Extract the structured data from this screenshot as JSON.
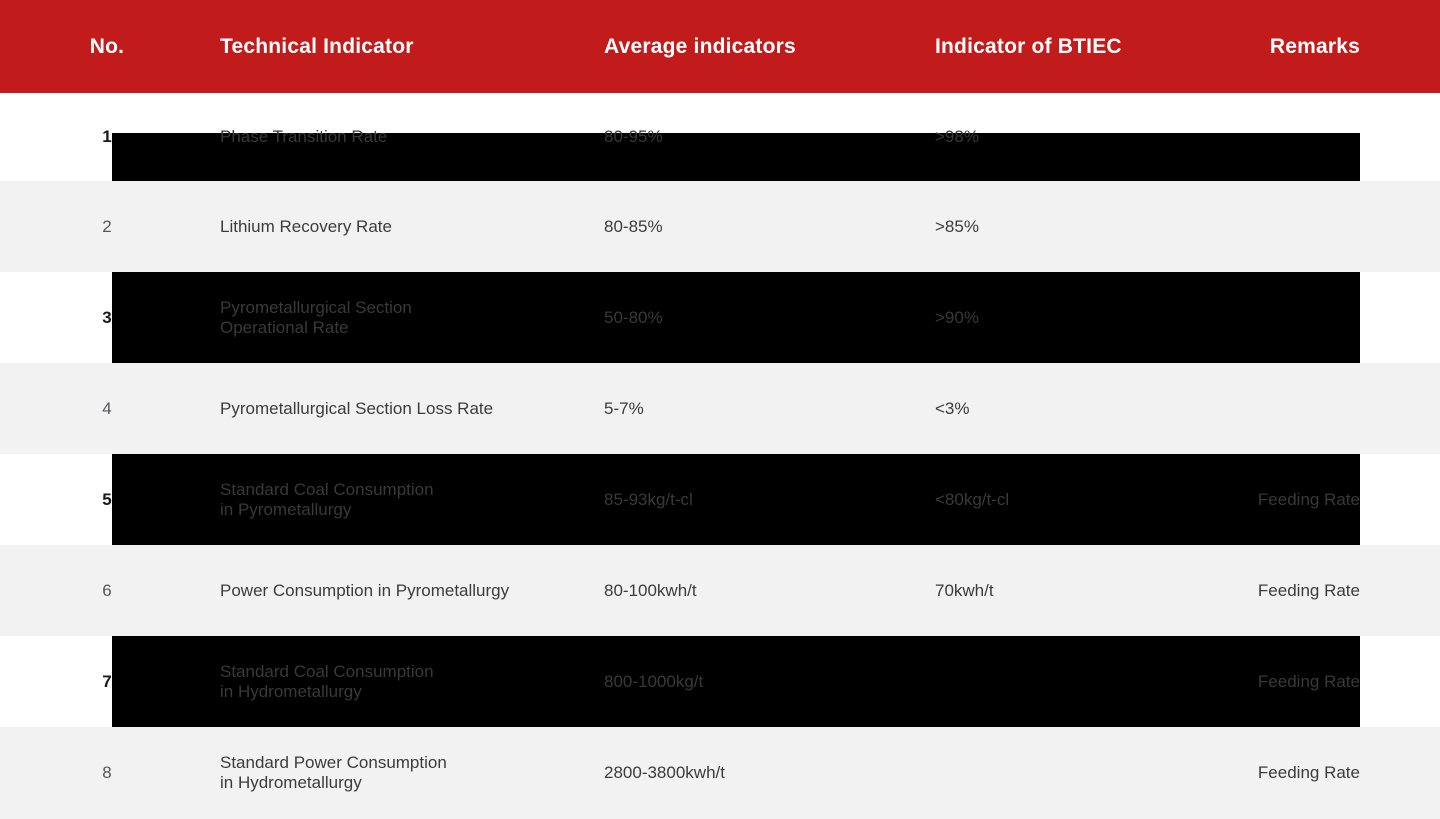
{
  "colors": {
    "header_bg": "#c21b1b",
    "header_text": "#ffffff",
    "row_bg": "#ffffff",
    "row_alt_bg": "#f2f2f2",
    "overlay": "#000000",
    "text": "#3c3c3e",
    "text_on_overlay": "#393939",
    "row_number_dark": "#1a1a1a",
    "row_number_light": "#55565a"
  },
  "header": {
    "columns": [
      {
        "key": "no",
        "label": "No."
      },
      {
        "key": "indicator",
        "label": "Technical Indicator"
      },
      {
        "key": "average",
        "label": "Average indicators"
      },
      {
        "key": "btiec",
        "label": "Indicator of BTIEC"
      },
      {
        "key": "remarks",
        "label": "Remarks"
      }
    ]
  },
  "table": {
    "rows": [
      {
        "no": "1",
        "indicator": "Phase Transition Rate",
        "average": "80-95%",
        "btiec": ">98%",
        "remarks": "",
        "highlighted": true,
        "overlay": "partial"
      },
      {
        "no": "2",
        "indicator": "Lithium Recovery Rate",
        "average": "80-85%",
        "btiec": ">85%",
        "remarks": "",
        "highlighted": false,
        "overlay": "none"
      },
      {
        "no": "3",
        "indicator": "Pyrometallurgical Section\nOperational Rate",
        "average": "50-80%",
        "btiec": ">90%",
        "remarks": "",
        "highlighted": true,
        "overlay": "full"
      },
      {
        "no": "4",
        "indicator": "Pyrometallurgical Section Loss Rate",
        "average": "5-7%",
        "btiec": "<3%",
        "remarks": "",
        "highlighted": false,
        "overlay": "none"
      },
      {
        "no": "5",
        "indicator": "Standard Coal Consumption\nin Pyrometallurgy",
        "average": "85-93kg/t-cl",
        "btiec": "<80kg/t-cl",
        "remarks": "Feeding Rate",
        "highlighted": true,
        "overlay": "full"
      },
      {
        "no": "6",
        "indicator": "Power Consumption in Pyrometallurgy",
        "average": "80-100kwh/t",
        "btiec": "70kwh/t",
        "remarks": "Feeding Rate",
        "highlighted": false,
        "overlay": "none"
      },
      {
        "no": "7",
        "indicator": "Standard Coal Consumption\nin Hydrometallurgy",
        "average": "800-1000kg/t",
        "btiec": "",
        "remarks": "Feeding Rate",
        "highlighted": true,
        "overlay": "full"
      },
      {
        "no": "8",
        "indicator": "Standard Power Consumption\nin Hydrometallurgy",
        "average": "2800-3800kwh/t",
        "btiec": "",
        "remarks": "Feeding Rate",
        "highlighted": false,
        "overlay": "none"
      }
    ]
  }
}
